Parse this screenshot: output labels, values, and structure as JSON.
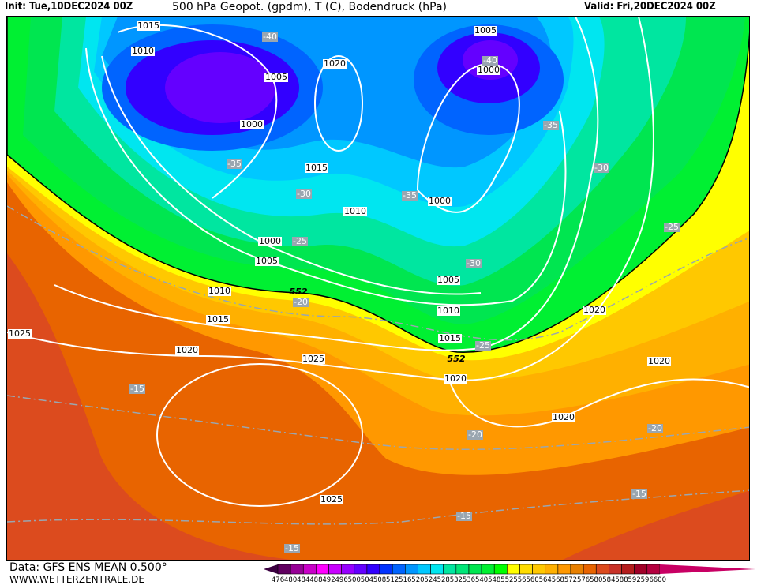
{
  "header": {
    "init": "Init: Tue,10DEC2024 00Z",
    "title": "500 hPa Geopot. (gpdm), T (C), Bodendruck (hPa)",
    "valid": "Valid: Fri,20DEC2024 00Z"
  },
  "footer": {
    "data": "Data: GFS ENS MEAN 0.500°",
    "site": "WWW.WETTERZENTRALE.DE"
  },
  "isobar_labels": [
    "1015",
    "1010",
    "1005",
    "1000",
    "1020",
    "1015",
    "1010",
    "1000",
    "1005",
    "1010",
    "1015",
    "1020",
    "1025",
    "1025",
    "1025",
    "1020",
    "1020",
    "1020",
    "1020",
    "1015",
    "1010",
    "1005",
    "1000",
    "1005",
    "1000"
  ],
  "temp_labels": [
    "-40",
    "-40",
    "-35",
    "-35",
    "-30",
    "-35",
    "-30",
    "-25",
    "-30",
    "-25",
    "-20",
    "-25",
    "-15",
    "-20",
    "-20",
    "-15",
    "-15",
    "-15"
  ],
  "geopot_labels": [
    "552",
    "552"
  ],
  "colorbar": {
    "ticks": [
      "476",
      "480",
      "484",
      "488",
      "492",
      "496",
      "500",
      "504",
      "508",
      "512",
      "516",
      "520",
      "524",
      "528",
      "532",
      "536",
      "540",
      "548",
      "552",
      "556",
      "560",
      "564",
      "568",
      "572",
      "576",
      "580",
      "584",
      "588",
      "592",
      "596",
      "600"
    ],
    "colors": [
      "#600060",
      "#960096",
      "#c800c8",
      "#ff00ff",
      "#c800ff",
      "#9600ff",
      "#6400ff",
      "#3200ff",
      "#0032ff",
      "#0064ff",
      "#0096ff",
      "#00c8ff",
      "#00e6f0",
      "#00e6a0",
      "#00e678",
      "#00e650",
      "#00f032",
      "#00ff00",
      "#ffff00",
      "#ffdc00",
      "#ffc800",
      "#ffb000",
      "#ff9800",
      "#e88000",
      "#e86400",
      "#dc4b1e",
      "#c83228",
      "#b41e1e",
      "#a00028",
      "#b40040"
    ],
    "low_arrow": "#3a0040",
    "high_arrow": "#c80064"
  }
}
